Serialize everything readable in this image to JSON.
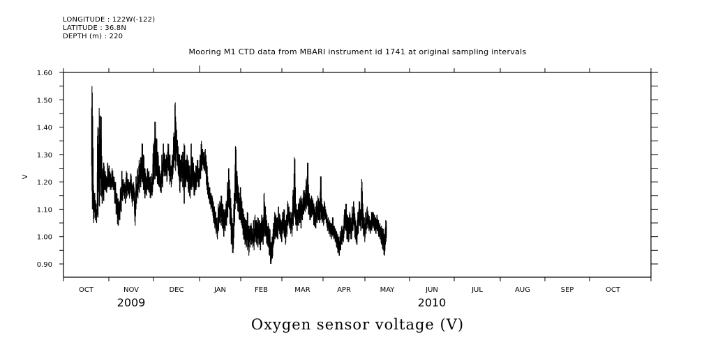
{
  "header": {
    "longitude": "LONGITUDE : 122W(-122)",
    "latitude": "LATITUDE : 36.8N",
    "depth": "DEPTH (m) : 220"
  },
  "chart_data": {
    "type": "line",
    "title": "Mooring M1 CTD data from MBARI instrument id 1741 at original sampling intervals",
    "xlabel": "Oxygen sensor voltage (V)",
    "ylabel": "V",
    "ylim": [
      0.85,
      1.6
    ],
    "yticks": [
      0.9,
      1.0,
      1.1,
      1.2,
      1.3,
      1.4,
      1.5,
      1.6
    ],
    "ytick_labels": [
      "0.90",
      "1.00",
      "1.10",
      "1.20",
      "1.30",
      "1.40",
      "1.50",
      "1.60"
    ],
    "xlim_months": [
      0,
      12.9
    ],
    "month_labels": [
      "OCT",
      "NOV",
      "DEC",
      "JAN",
      "FEB",
      "MAR",
      "APR",
      "MAY",
      "JUN",
      "JUL",
      "AUG",
      "SEP",
      "OCT"
    ],
    "year_labels": [
      {
        "label": "2009",
        "month_index": 1
      },
      {
        "label": "2010",
        "month_index": 8
      }
    ],
    "grid": false,
    "series": [
      {
        "name": "Oxygen sensor voltage",
        "color": "#000000",
        "x_start_month": 0.62,
        "x_step_month": 0.0318,
        "ranges": [
          [
            1.1,
            1.55
          ],
          [
            1.05,
            1.19
          ],
          [
            1.06,
            1.16
          ],
          [
            1.05,
            1.12
          ],
          [
            1.07,
            1.4
          ],
          [
            1.11,
            1.47
          ],
          [
            1.15,
            1.44
          ],
          [
            1.12,
            1.25
          ],
          [
            1.13,
            1.27
          ],
          [
            1.17,
            1.24
          ],
          [
            1.16,
            1.22
          ],
          [
            1.18,
            1.27
          ],
          [
            1.18,
            1.26
          ],
          [
            1.17,
            1.23
          ],
          [
            1.18,
            1.25
          ],
          [
            1.17,
            1.22
          ],
          [
            1.12,
            1.2
          ],
          [
            1.08,
            1.16
          ],
          [
            1.04,
            1.14
          ],
          [
            1.06,
            1.13
          ],
          [
            1.09,
            1.18
          ],
          [
            1.13,
            1.24
          ],
          [
            1.15,
            1.21
          ],
          [
            1.12,
            1.2
          ],
          [
            1.14,
            1.24
          ],
          [
            1.15,
            1.21
          ],
          [
            1.14,
            1.2
          ],
          [
            1.16,
            1.23
          ],
          [
            1.11,
            1.19
          ],
          [
            1.13,
            1.2
          ],
          [
            1.04,
            1.16
          ],
          [
            1.12,
            1.22
          ],
          [
            1.14,
            1.25
          ],
          [
            1.16,
            1.28
          ],
          [
            1.18,
            1.29
          ],
          [
            1.2,
            1.34
          ],
          [
            1.17,
            1.3
          ],
          [
            1.14,
            1.25
          ],
          [
            1.15,
            1.22
          ],
          [
            1.17,
            1.25
          ],
          [
            1.16,
            1.24
          ],
          [
            1.14,
            1.22
          ],
          [
            1.15,
            1.23
          ],
          [
            1.19,
            1.34
          ],
          [
            1.21,
            1.42
          ],
          [
            1.22,
            1.36
          ],
          [
            1.19,
            1.31
          ],
          [
            1.18,
            1.26
          ],
          [
            1.16,
            1.23
          ],
          [
            1.18,
            1.3
          ],
          [
            1.22,
            1.34
          ],
          [
            1.22,
            1.3
          ],
          [
            1.2,
            1.3
          ],
          [
            1.24,
            1.34
          ],
          [
            1.19,
            1.3
          ],
          [
            1.18,
            1.26
          ],
          [
            1.21,
            1.3
          ],
          [
            1.25,
            1.38
          ],
          [
            1.24,
            1.49
          ],
          [
            1.26,
            1.39
          ],
          [
            1.22,
            1.33
          ],
          [
            1.16,
            1.3
          ],
          [
            1.2,
            1.3
          ],
          [
            1.18,
            1.31
          ],
          [
            1.12,
            1.34
          ],
          [
            1.18,
            1.28
          ],
          [
            1.2,
            1.3
          ],
          [
            1.16,
            1.28
          ],
          [
            1.14,
            1.26
          ],
          [
            1.17,
            1.34
          ],
          [
            1.18,
            1.29
          ],
          [
            1.15,
            1.24
          ],
          [
            1.17,
            1.26
          ],
          [
            1.2,
            1.28
          ],
          [
            1.18,
            1.25
          ],
          [
            1.21,
            1.3
          ],
          [
            1.24,
            1.35
          ],
          [
            1.26,
            1.32
          ],
          [
            1.24,
            1.31
          ],
          [
            1.23,
            1.32
          ],
          [
            1.17,
            1.27
          ],
          [
            1.14,
            1.2
          ],
          [
            1.12,
            1.18
          ],
          [
            1.1,
            1.16
          ],
          [
            1.09,
            1.15
          ],
          [
            1.05,
            1.13
          ],
          [
            1.03,
            1.11
          ],
          [
            1.01,
            1.09
          ],
          [
            0.99,
            1.07
          ],
          [
            1.02,
            1.12
          ],
          [
            1.05,
            1.13
          ],
          [
            1.04,
            1.15
          ],
          [
            1.03,
            1.12
          ],
          [
            1.0,
            1.1
          ],
          [
            1.02,
            1.1
          ],
          [
            1.04,
            1.13
          ],
          [
            1.07,
            1.2
          ],
          [
            1.1,
            1.25
          ],
          [
            1.04,
            1.17
          ],
          [
            0.97,
            1.08
          ],
          [
            0.94,
            1.05
          ],
          [
            1.04,
            1.16
          ],
          [
            1.13,
            1.33
          ],
          [
            1.12,
            1.24
          ],
          [
            1.09,
            1.19
          ],
          [
            1.06,
            1.16
          ],
          [
            1.05,
            1.18
          ],
          [
            1.03,
            1.13
          ],
          [
            0.99,
            1.1
          ],
          [
            0.97,
            1.07
          ],
          [
            0.96,
            1.06
          ],
          [
            0.95,
            1.09
          ],
          [
            0.93,
            1.04
          ],
          [
            0.96,
            1.04
          ],
          [
            0.97,
            1.05
          ],
          [
            0.96,
            1.03
          ],
          [
            0.95,
            1.06
          ],
          [
            0.98,
            1.08
          ],
          [
            0.97,
            1.06
          ],
          [
            0.96,
            1.07
          ],
          [
            0.97,
            1.06
          ],
          [
            0.95,
            1.05
          ],
          [
            0.98,
            1.08
          ],
          [
            0.97,
            1.07
          ],
          [
            1.0,
            1.16
          ],
          [
            1.0,
            1.11
          ],
          [
            0.97,
            1.06
          ],
          [
            0.96,
            1.05
          ],
          [
            0.93,
            1.03
          ],
          [
            0.9,
            0.98
          ],
          [
            0.92,
            1.0
          ],
          [
            0.97,
            1.05
          ],
          [
            0.99,
            1.09
          ],
          [
            1.0,
            1.08
          ],
          [
            0.99,
            1.07
          ],
          [
            1.02,
            1.11
          ],
          [
            1.0,
            1.08
          ],
          [
            0.98,
            1.06
          ],
          [
            1.01,
            1.09
          ],
          [
            1.0,
            1.1
          ],
          [
            0.97,
            1.06
          ],
          [
            1.0,
            1.08
          ],
          [
            1.04,
            1.13
          ],
          [
            1.03,
            1.11
          ],
          [
            1.01,
            1.09
          ],
          [
            1.0,
            1.09
          ],
          [
            1.04,
            1.17
          ],
          [
            1.07,
            1.29
          ],
          [
            1.04,
            1.12
          ],
          [
            1.02,
            1.1
          ],
          [
            1.04,
            1.12
          ],
          [
            1.05,
            1.14
          ],
          [
            1.03,
            1.15
          ],
          [
            1.06,
            1.14
          ],
          [
            1.08,
            1.17
          ],
          [
            1.09,
            1.17
          ],
          [
            1.1,
            1.21
          ],
          [
            1.11,
            1.27
          ],
          [
            1.08,
            1.16
          ],
          [
            1.06,
            1.14
          ],
          [
            1.07,
            1.15
          ],
          [
            1.08,
            1.14
          ],
          [
            1.04,
            1.12
          ],
          [
            1.03,
            1.11
          ],
          [
            1.05,
            1.13
          ],
          [
            1.06,
            1.15
          ],
          [
            1.05,
            1.13
          ],
          [
            1.06,
            1.22
          ],
          [
            1.05,
            1.12
          ],
          [
            1.04,
            1.11
          ],
          [
            1.06,
            1.13
          ],
          [
            1.05,
            1.1
          ],
          [
            1.02,
            1.08
          ],
          [
            1.01,
            1.07
          ],
          [
            1.0,
            1.06
          ],
          [
            0.99,
            1.05
          ],
          [
            1.0,
            1.07
          ],
          [
            0.99,
            1.04
          ],
          [
            0.98,
            1.03
          ],
          [
            0.96,
            1.02
          ],
          [
            0.94,
            1.01
          ],
          [
            0.93,
            1.0
          ],
          [
            0.95,
            1.02
          ],
          [
            0.97,
            1.04
          ],
          [
            0.98,
            1.04
          ],
          [
            1.03,
            1.1
          ],
          [
            1.02,
            1.12
          ],
          [
            0.99,
            1.08
          ],
          [
            0.98,
            1.07
          ],
          [
            1.01,
            1.09
          ],
          [
            0.99,
            1.07
          ],
          [
            1.02,
            1.11
          ],
          [
            1.04,
            1.13
          ],
          [
            0.99,
            1.07
          ],
          [
            0.97,
            1.04
          ],
          [
            1.01,
            1.09
          ],
          [
            1.04,
            1.13
          ],
          [
            1.02,
            1.1
          ],
          [
            1.03,
            1.21
          ],
          [
            1.0,
            1.1
          ],
          [
            0.98,
            1.07
          ],
          [
            1.01,
            1.09
          ],
          [
            1.03,
            1.11
          ],
          [
            1.02,
            1.08
          ],
          [
            1.01,
            1.06
          ],
          [
            1.02,
            1.09
          ],
          [
            1.03,
            1.09
          ],
          [
            1.02,
            1.08
          ],
          [
            1.01,
            1.07
          ],
          [
            1.02,
            1.08
          ],
          [
            1.0,
            1.06
          ],
          [
            0.99,
            1.05
          ],
          [
            0.97,
            1.04
          ],
          [
            0.95,
            1.03
          ],
          [
            0.93,
            1.01
          ],
          [
            0.98,
            1.06
          ]
        ]
      }
    ]
  }
}
